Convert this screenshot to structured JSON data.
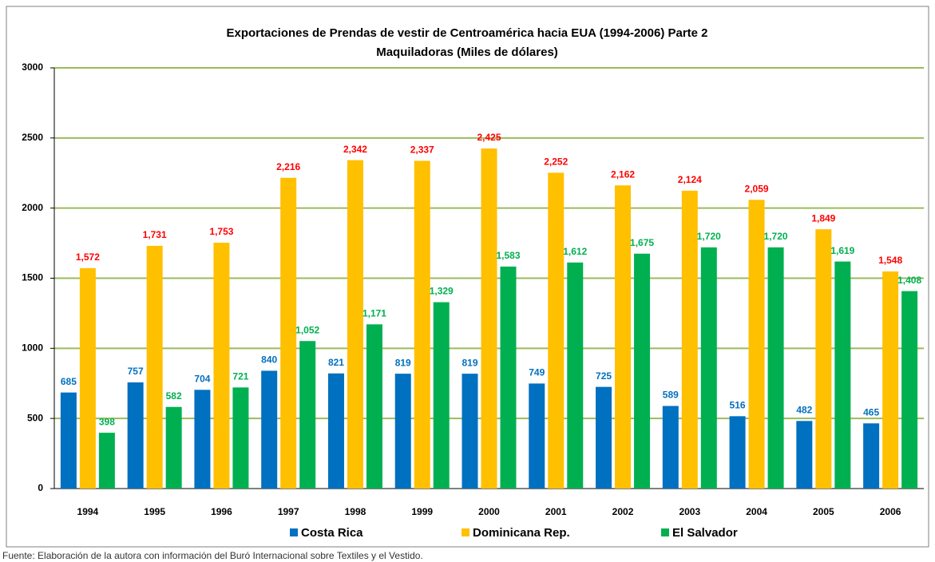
{
  "chart_data": {
    "type": "bar",
    "title": "Exportaciones de Prendas de vestir de Centroamérica hacia EUA (1994-2006) Parte 2",
    "subtitle": "Maquiladoras (Miles de dólares)",
    "source": "Fuente: Elaboración de la autora con información del Buró Internacional sobre Textiles y el Vestido.",
    "categories": [
      "1994",
      "1995",
      "1996",
      "1997",
      "1998",
      "1999",
      "2000",
      "2001",
      "2002",
      "2003",
      "2004",
      "2005",
      "2006"
    ],
    "series": [
      {
        "name": "Costa Rica",
        "color": "#0070c0",
        "label_color": "#0070c0",
        "values": [
          685,
          757,
          704,
          840,
          821,
          819,
          819,
          749,
          725,
          589,
          516,
          482,
          465
        ],
        "value_labels": [
          "685",
          "757",
          "704",
          "840",
          "821",
          "819",
          "819",
          "749",
          "725",
          "589",
          "516",
          "482",
          "465"
        ]
      },
      {
        "name": "Dominicana Rep.",
        "color": "#ffc000",
        "label_color": "#ff0000",
        "values": [
          1572,
          1731,
          1753,
          2216,
          2342,
          2337,
          2425,
          2252,
          2162,
          2124,
          2059,
          1849,
          1548
        ],
        "value_labels": [
          "1,572",
          "1,731",
          "1,753",
          "2,216",
          "2,342",
          "2,337",
          "2,425",
          "2,252",
          "2,162",
          "2,124",
          "2,059",
          "1,849",
          "1,548"
        ]
      },
      {
        "name": "El Salvador",
        "color": "#00b050",
        "label_color": "#00b050",
        "values": [
          398,
          582,
          721,
          1052,
          1171,
          1329,
          1583,
          1612,
          1675,
          1720,
          1720,
          1619,
          1408
        ],
        "value_labels": [
          "398",
          "582",
          "721",
          "1,052",
          "1,171",
          "1,329",
          "1,583",
          "1,612",
          "1,675",
          "1,720",
          "1,720",
          "1,619",
          "1,408"
        ]
      }
    ],
    "ylim": [
      0,
      3000
    ],
    "yticks": [
      0,
      500,
      1000,
      1500,
      2000,
      2500,
      3000
    ],
    "grid": true,
    "grid_color": "#9bbb59",
    "legend": "bottom"
  }
}
